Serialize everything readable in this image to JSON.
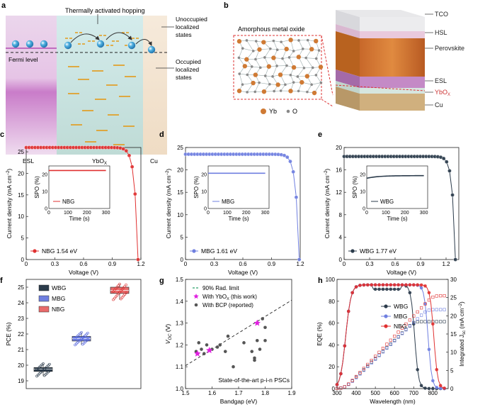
{
  "panel_letters": {
    "a": "a",
    "b": "b",
    "c": "c",
    "d": "d",
    "e": "e",
    "f": "f",
    "g": "g",
    "h": "h"
  },
  "panel_a": {
    "hopping": "Thermally activated hopping",
    "unoccupied": [
      "Unoccupied",
      "localized",
      "states"
    ],
    "occupied": [
      "Occupied",
      "localized",
      "states"
    ],
    "fermi": "Fermi level",
    "esl": "ESL",
    "ybox": "YbO",
    "ybox_sub": "X",
    "cu": "Cu"
  },
  "panel_b": {
    "amorphous": "Amorphous metal oxide",
    "legend_yb": "Yb",
    "legend_o": "O",
    "layers": [
      "TCO",
      "HSL",
      "Perovskite",
      "ESL",
      "YbO",
      "Cu"
    ],
    "ybox_sub": "X"
  },
  "jv_common": {
    "xlabel": "Voltage (V)",
    "ylabel": "Current density (mA cm",
    "ylabel_sup": "−2",
    "inset_ylabel": "SPO (%)",
    "inset_xlabel": "Time   (s)"
  },
  "chart_data": [
    {
      "panel": "c",
      "type": "line",
      "color": "#e03030",
      "xlim": [
        0,
        1.2
      ],
      "ylim": [
        0,
        26
      ],
      "xticks": [
        "0",
        "0.3",
        "0.6",
        "0.9",
        "1.2"
      ],
      "yticks": [
        "0",
        "5",
        "10",
        "15",
        "20",
        "25"
      ],
      "legend": "NBG 1.54 eV",
      "jsc": 26.0,
      "voc": 1.17,
      "inset": {
        "legend": "NBG",
        "spo": 22.3,
        "xticks": [
          "0",
          "100",
          "200",
          "300"
        ],
        "yticks": [
          "0",
          "10",
          "20"
        ]
      }
    },
    {
      "panel": "d",
      "type": "line",
      "color": "#6f7fe0",
      "xlim": [
        0,
        1.2
      ],
      "ylim": [
        0,
        25
      ],
      "xticks": [
        "0",
        "0.3",
        "0.6",
        "0.9",
        "1.2"
      ],
      "yticks": [
        "0",
        "5",
        "10",
        "15",
        "20",
        "25"
      ],
      "legend": "MBG 1.61 eV",
      "jsc": 23.5,
      "voc": 1.19,
      "inset": {
        "legend": "MBG",
        "spo": 20.7,
        "xticks": [
          "0",
          "100",
          "200",
          "300"
        ],
        "yticks": [
          "0",
          "10",
          "20"
        ]
      }
    },
    {
      "panel": "e",
      "type": "line",
      "color": "#2b3b4b",
      "xlim": [
        0,
        1.35
      ],
      "ylim": [
        0,
        20
      ],
      "xticks": [
        "0",
        "0.3",
        "0.6",
        "0.9",
        "1.2"
      ],
      "yticks": [
        "0",
        "4",
        "8",
        "12",
        "16",
        "20"
      ],
      "legend": "WBG 1.77 eV",
      "jsc": 18.4,
      "voc": 1.31,
      "inset": {
        "legend": "WBG",
        "spo": 19.3,
        "xticks": [
          "0",
          "100",
          "200",
          "300"
        ],
        "yticks": [
          "0",
          "10",
          "20"
        ]
      }
    },
    {
      "panel": "f",
      "type": "box",
      "ylabel": "PCE (%)",
      "ylim": [
        18.5,
        25.5
      ],
      "yticks": [
        "19",
        "20",
        "21",
        "22",
        "23",
        "24",
        "25"
      ],
      "series": [
        {
          "name": "WBG",
          "color": "#2b3b4b",
          "q1": 19.6,
          "median": 19.75,
          "q3": 19.85,
          "min": 19.3,
          "max": 20.1
        },
        {
          "name": "MBG",
          "color": "#6f7fe0",
          "q1": 21.55,
          "median": 21.7,
          "q3": 21.85,
          "min": 21.3,
          "max": 22.1
        },
        {
          "name": "NBG",
          "color": "#e86a6a",
          "q1": 24.6,
          "median": 24.8,
          "q3": 25.0,
          "min": 24.2,
          "max": 25.2
        }
      ]
    },
    {
      "panel": "g",
      "type": "scatter",
      "xlabel": "Bandgap (eV)",
      "ylabel": "V",
      "ylabel_sub": "OC",
      "ylabel_unit": " (V)",
      "xlim": [
        1.5,
        1.9
      ],
      "ylim": [
        1.0,
        1.5
      ],
      "xticks": [
        "1.5",
        "1.6",
        "1.7",
        "1.8",
        "1.9"
      ],
      "yticks": [
        "1.0",
        "1.1",
        "1.2",
        "1.3",
        "1.4",
        "1.5"
      ],
      "legend": [
        "90% Rad. limit",
        "With YbO",
        "With BCP (reported)"
      ],
      "legend_ybox_tail": " (this work)",
      "annotation": "State-of-the-art p-i-n PSCs",
      "rad_limit": [
        [
          1.5,
          1.105
        ],
        [
          1.9,
          1.405
        ]
      ],
      "this_work": [
        [
          1.545,
          1.16
        ],
        [
          1.59,
          1.175
        ],
        [
          1.77,
          1.3
        ]
      ],
      "reported": [
        [
          1.54,
          1.17
        ],
        [
          1.55,
          1.21
        ],
        [
          1.56,
          1.18
        ],
        [
          1.57,
          1.16
        ],
        [
          1.6,
          1.18
        ],
        [
          1.62,
          1.19
        ],
        [
          1.63,
          1.2
        ],
        [
          1.65,
          1.17
        ],
        [
          1.68,
          1.1
        ],
        [
          1.72,
          1.21
        ],
        [
          1.75,
          1.17
        ],
        [
          1.76,
          1.13
        ],
        [
          1.76,
          1.14
        ],
        [
          1.77,
          1.22
        ],
        [
          1.78,
          1.18
        ],
        [
          1.79,
          1.32
        ],
        [
          1.8,
          1.28
        ],
        [
          1.8,
          1.22
        ],
        [
          1.66,
          1.24
        ],
        [
          1.58,
          1.2
        ]
      ]
    },
    {
      "panel": "h",
      "type": "line",
      "xlabel": "Wavelength (nm)",
      "ylabel": "EQE (%)",
      "ylabel2": "Integrated J",
      "ylabel2_sub": "sc",
      "ylabel2_unit": " (mA cm",
      "ylabel2_sup": "−2",
      "xlim": [
        300,
        880
      ],
      "ylim": [
        0,
        100
      ],
      "y2lim": [
        0,
        30
      ],
      "xticks": [
        "300",
        "400",
        "500",
        "600",
        "700",
        "800"
      ],
      "yticks": [
        "0",
        "20",
        "40",
        "60",
        "80",
        "100"
      ],
      "y2ticks": [
        "0",
        "5",
        "10",
        "15",
        "20",
        "25",
        "30"
      ],
      "series": [
        {
          "name": "WBG",
          "color": "#2b3b4b",
          "edge": 705,
          "jsc": 18.4
        },
        {
          "name": "MBG",
          "color": "#6f7fe0",
          "edge": 775,
          "jsc": 21.7
        },
        {
          "name": "NBG",
          "color": "#e03030",
          "edge": 805,
          "jsc": 25.5
        }
      ]
    }
  ]
}
